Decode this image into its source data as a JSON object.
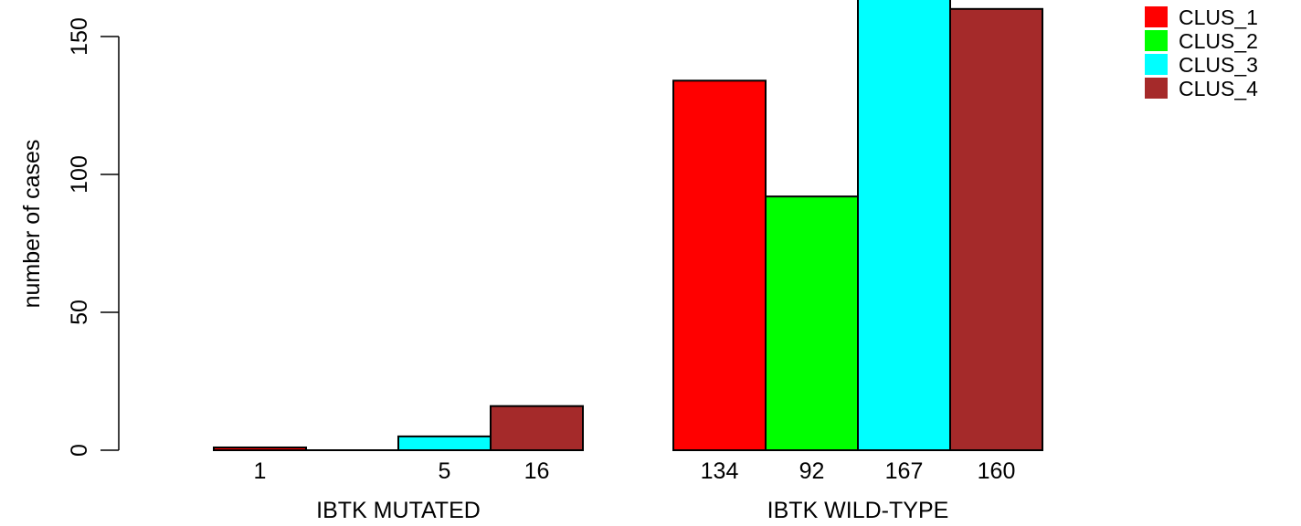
{
  "chart_data": {
    "type": "bar",
    "ylabel": "number of cases",
    "yticks": [
      0,
      50,
      100,
      150
    ],
    "ylim": [
      0,
      170
    ],
    "grid": false,
    "legend": {
      "placement": "top-right",
      "entries": [
        {
          "name": "CLUS_1",
          "color": "#ff0000"
        },
        {
          "name": "CLUS_2",
          "color": "#00ff00"
        },
        {
          "name": "CLUS_3",
          "color": "#00ffff"
        },
        {
          "name": "CLUS_4",
          "color": "#a52a2a"
        }
      ]
    },
    "groups": [
      {
        "name": "IBTK MUTATED",
        "values": [
          1,
          0,
          5,
          16
        ],
        "labels": [
          "1",
          "",
          "5",
          "16"
        ]
      },
      {
        "name": "IBTK WILD-TYPE",
        "values": [
          134,
          92,
          167,
          160
        ],
        "labels": [
          "134",
          "92",
          "167",
          "160"
        ]
      }
    ]
  }
}
